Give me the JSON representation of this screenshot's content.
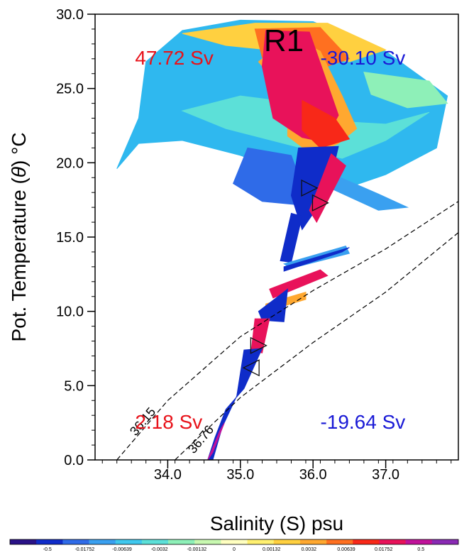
{
  "chart_data": {
    "type": "scatter",
    "title": "R1",
    "xlabel": "Salinity (S) psu",
    "ylabel_parts": [
      "Pot. Temperature (",
      "θ",
      ") °C"
    ],
    "xlim": [
      33.0,
      38.0
    ],
    "ylim": [
      0.0,
      30.0
    ],
    "x_ticks": [
      {
        "value": 34.0,
        "label": "34.0"
      },
      {
        "value": 35.0,
        "label": "35.0"
      },
      {
        "value": 36.0,
        "label": "36.0"
      },
      {
        "value": 37.0,
        "label": "37.0"
      }
    ],
    "y_ticks": [
      {
        "value": 0,
        "label": "0.0"
      },
      {
        "value": 5,
        "label": "5.0"
      },
      {
        "value": 10,
        "label": "10.0"
      },
      {
        "value": 15,
        "label": "15.0"
      },
      {
        "value": 20,
        "label": "20.0"
      },
      {
        "value": 25,
        "label": "25.0"
      },
      {
        "value": 30,
        "label": "30.0"
      }
    ],
    "transport_labels": [
      {
        "text": "47.72 Sv",
        "color": "#e8121a",
        "x": 33.55,
        "y": 26.6
      },
      {
        "text": "-30.10 Sv",
        "color": "#1a1ad6",
        "x": 36.1,
        "y": 26.6
      },
      {
        "text": "2.18 Sv",
        "color": "#e8121a",
        "x": 33.55,
        "y": 2.1
      },
      {
        "text": "-19.64 Sv",
        "color": "#1a1ad6",
        "x": 36.1,
        "y": 2.1
      }
    ],
    "density_contours": [
      {
        "label": "36.15",
        "x": [
          33.3,
          34.0,
          35.0,
          36.0,
          37.0,
          38.0
        ],
        "y": [
          0.0,
          4.0,
          8.3,
          11.4,
          14.2,
          17.4
        ],
        "label_x": 33.7,
        "label_y": 2.4
      },
      {
        "label": "36.76",
        "x": [
          34.1,
          35.0,
          36.0,
          37.0,
          38.0
        ],
        "y": [
          0.0,
          4.2,
          7.9,
          11.3,
          15.3
        ],
        "label_x": 34.5,
        "label_y": 1.2
      }
    ],
    "colorbar": {
      "labels": [
        "-0.5",
        "-0.01752",
        "-0.00639",
        "-0.0032",
        "-0.00132",
        "0",
        "0.00132",
        "0.0032",
        "0.00639",
        "0.01752",
        "0.5"
      ],
      "colors": [
        "#2a1287",
        "#0f2cc9",
        "#2f6be8",
        "#3aa0f0",
        "#40c8ee",
        "#5ce0d8",
        "#8ef0b8",
        "#c8f8b0",
        "#ffffc0",
        "#fff070",
        "#ffd040",
        "#ffa830",
        "#ff7020",
        "#f82818",
        "#e8125a",
        "#c0129a",
        "#8a2ab4"
      ]
    },
    "regions": [
      {
        "fill": "#2fb8ef",
        "points": [
          [
            33.7,
            26.8
          ],
          [
            34.2,
            28.9
          ],
          [
            35.0,
            29.6
          ],
          [
            36.0,
            29.5
          ],
          [
            37.0,
            27.5
          ],
          [
            37.85,
            24.5
          ],
          [
            37.7,
            21.0
          ],
          [
            37.0,
            19.2
          ],
          [
            36.4,
            18.2
          ],
          [
            35.8,
            19.1
          ],
          [
            35.0,
            20.5
          ],
          [
            34.2,
            21.5
          ],
          [
            33.6,
            21.3
          ],
          [
            33.3,
            19.6
          ],
          [
            33.6,
            23.0
          ]
        ]
      },
      {
        "fill": "#5ce0d8",
        "points": [
          [
            34.2,
            23.5
          ],
          [
            35.0,
            24.5
          ],
          [
            35.8,
            24.0
          ],
          [
            36.3,
            22.8
          ],
          [
            37.0,
            22.6
          ],
          [
            37.6,
            23.4
          ],
          [
            37.0,
            21.5
          ],
          [
            36.4,
            20.3
          ],
          [
            35.6,
            21.3
          ],
          [
            34.8,
            22.3
          ]
        ]
      },
      {
        "fill": "#ffd040",
        "points": [
          [
            34.2,
            28.7
          ],
          [
            35.2,
            29.4
          ],
          [
            36.2,
            29.4
          ],
          [
            37.0,
            27.6
          ],
          [
            36.5,
            26.8
          ],
          [
            35.6,
            27.5
          ],
          [
            34.8,
            27.9
          ]
        ]
      },
      {
        "fill": "#ff7020",
        "points": [
          [
            35.2,
            29.0
          ],
          [
            36.1,
            29.1
          ],
          [
            36.5,
            27.0
          ],
          [
            35.9,
            26.0
          ],
          [
            35.3,
            27.1
          ]
        ]
      },
      {
        "fill": "#8ef0b8",
        "points": [
          [
            36.7,
            26.1
          ],
          [
            37.6,
            25.5
          ],
          [
            37.85,
            24.0
          ],
          [
            37.3,
            23.7
          ],
          [
            36.8,
            24.6
          ]
        ]
      },
      {
        "fill": "#2f6be8",
        "points": [
          [
            35.1,
            21.0
          ],
          [
            35.7,
            20.5
          ],
          [
            35.95,
            17.1
          ],
          [
            35.3,
            17.4
          ],
          [
            34.9,
            18.6
          ]
        ]
      },
      {
        "fill": "#ffa830",
        "points": [
          [
            35.25,
            26.8
          ],
          [
            35.65,
            24.5
          ],
          [
            35.65,
            21.8
          ],
          [
            36.0,
            20.5
          ],
          [
            36.35,
            21.3
          ],
          [
            36.6,
            22.3
          ],
          [
            36.4,
            24.5
          ],
          [
            36.1,
            27.5
          ],
          [
            35.7,
            28.5
          ]
        ]
      },
      {
        "fill": "#e8125a",
        "points": [
          [
            35.35,
            28.9
          ],
          [
            35.95,
            28.8
          ],
          [
            36.35,
            23.2
          ],
          [
            36.15,
            21.4
          ],
          [
            35.85,
            21.7
          ],
          [
            35.45,
            23.0
          ],
          [
            35.3,
            26.5
          ]
        ]
      },
      {
        "fill": "#f82818",
        "points": [
          [
            35.85,
            24.2
          ],
          [
            36.3,
            23.0
          ],
          [
            36.5,
            21.6
          ],
          [
            36.1,
            21.0
          ],
          [
            35.85,
            22.2
          ]
        ]
      },
      {
        "fill": "#3aa0f0",
        "points": [
          [
            36.0,
            19.8
          ],
          [
            36.9,
            17.9
          ],
          [
            37.3,
            17.0
          ],
          [
            36.9,
            16.8
          ],
          [
            36.1,
            18.6
          ]
        ]
      },
      {
        "fill": "#0f2cc9",
        "points": [
          [
            35.8,
            21.0
          ],
          [
            36.35,
            21.1
          ],
          [
            36.2,
            18.0
          ],
          [
            35.85,
            15.5
          ],
          [
            35.7,
            17.8
          ]
        ]
      },
      {
        "fill": "#e8125a",
        "points": [
          [
            36.25,
            20.6
          ],
          [
            36.45,
            19.8
          ],
          [
            36.05,
            16.0
          ],
          [
            35.95,
            16.8
          ]
        ]
      },
      {
        "fill": "#0f2cc9",
        "points": [
          [
            35.7,
            16.6
          ],
          [
            35.85,
            16.4
          ],
          [
            35.7,
            13.3
          ],
          [
            35.55,
            13.4
          ]
        ]
      },
      {
        "fill": "#3aa0f0",
        "points": [
          [
            35.6,
            13.2
          ],
          [
            36.45,
            14.4
          ],
          [
            36.5,
            13.9
          ],
          [
            35.7,
            12.9
          ]
        ]
      },
      {
        "fill": "#0f2cc9",
        "points": [
          [
            35.6,
            13.0
          ],
          [
            36.5,
            14.3
          ],
          [
            36.4,
            14.0
          ],
          [
            35.6,
            12.7
          ]
        ]
      },
      {
        "fill": "#e8125a",
        "points": [
          [
            35.4,
            11.5
          ],
          [
            36.1,
            12.8
          ],
          [
            36.2,
            12.4
          ],
          [
            35.45,
            10.9
          ]
        ]
      },
      {
        "fill": "#ffa830",
        "points": [
          [
            35.35,
            10.5
          ],
          [
            35.9,
            11.3
          ],
          [
            35.9,
            10.8
          ],
          [
            35.35,
            10.0
          ]
        ]
      },
      {
        "fill": "#0f2cc9",
        "points": [
          [
            35.25,
            10.0
          ],
          [
            35.65,
            11.5
          ],
          [
            35.6,
            9.3
          ],
          [
            35.3,
            9.4
          ]
        ]
      },
      {
        "fill": "#e8125a",
        "points": [
          [
            35.2,
            9.5
          ],
          [
            35.4,
            9.5
          ],
          [
            35.3,
            7.2
          ],
          [
            35.15,
            7.4
          ]
        ]
      },
      {
        "fill": "#0f2cc9",
        "points": [
          [
            35.05,
            7.4
          ],
          [
            35.3,
            7.5
          ],
          [
            35.05,
            4.8
          ],
          [
            34.8,
            3.4
          ],
          [
            34.65,
            1.5
          ],
          [
            34.55,
            0.0
          ],
          [
            34.62,
            0.0
          ],
          [
            34.75,
            2.2
          ],
          [
            34.95,
            4.3
          ]
        ]
      },
      {
        "fill": "#c0129a",
        "points": [
          [
            34.55,
            0.0
          ],
          [
            34.72,
            2.0
          ],
          [
            34.78,
            2.5
          ],
          [
            34.62,
            0.5
          ]
        ]
      }
    ],
    "arrows": [
      {
        "x": 35.95,
        "y": 18.3,
        "dir": "right"
      },
      {
        "x": 36.1,
        "y": 17.3,
        "dir": "right"
      },
      {
        "x": 35.25,
        "y": 7.7,
        "dir": "right"
      },
      {
        "x": 35.15,
        "y": 6.2,
        "dir": "left"
      }
    ]
  }
}
